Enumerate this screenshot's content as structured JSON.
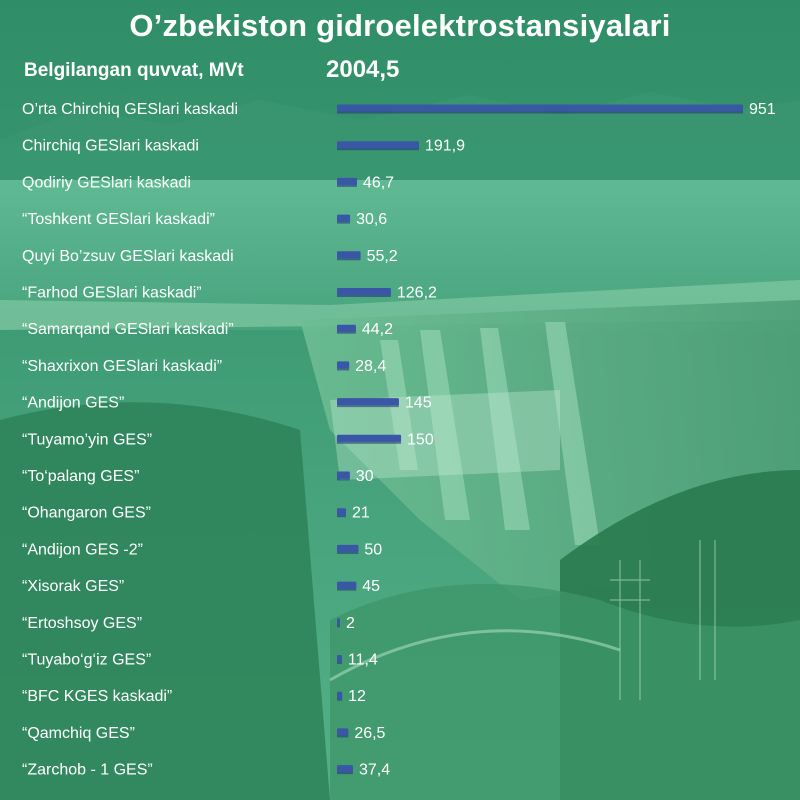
{
  "header": {
    "title": "O’zbekiston gidroelektrostansiyalari",
    "subtitle": "Belgilangan quvvat, MVt",
    "total": "2004,5"
  },
  "colors": {
    "bar": "#3a56a6",
    "bar_dark": "#26397a",
    "text": "#ffffff",
    "background": "#3f9d72"
  },
  "chart_data": {
    "type": "bar",
    "orientation": "horizontal",
    "title": "O’zbekiston gidroelektrostansiyalari",
    "xlabel": "Belgilangan quvvat, MVt",
    "ylabel": "",
    "xlim": [
      0,
      951
    ],
    "categories": [
      "O’rta Chirchiq GESlari kaskadi",
      "Chirchiq GESlari kaskadi",
      "Qodiriy GESlari kaskadi",
      "“Toshkent GESlari kaskadi”",
      "Quyi Bo’zsuv GESlari kaskadi",
      "“Farhod GESlari kaskadi”",
      "“Samarqand GESlari kaskadi”",
      "“Shaxrixon GESlari kaskadi”",
      "“Andijon GES”",
      "“Tuyamo’yin GES”",
      "“To‘palang GES”",
      "“Ohangaron GES”",
      "“Andijon GES -2”",
      "“Xisorak GES”",
      "“Ertoshsoy GES”",
      "“Tuyabo‘g‘iz GES”",
      "“BFC KGES kaskadi”",
      "“Qamchiq GES”",
      "“Zarchob - 1 GES”"
    ],
    "values": [
      951,
      191.9,
      46.7,
      30.6,
      55.2,
      126.2,
      44.2,
      28.4,
      145,
      150,
      30,
      21,
      50,
      45,
      2,
      11.4,
      12,
      26.5,
      37.4
    ],
    "value_labels": [
      "951",
      "191,9",
      "46,7",
      "30,6",
      "55,2",
      "126,2",
      "44,2",
      "28,4",
      "145",
      "150",
      "30",
      "21",
      "50",
      "45",
      "2",
      "11,4",
      "12",
      "26,5",
      "37,4"
    ]
  }
}
